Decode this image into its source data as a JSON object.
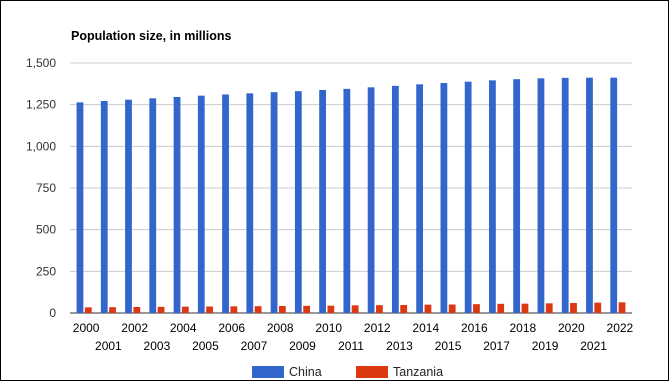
{
  "chart_data": {
    "type": "bar",
    "title": "Population size, in millions",
    "xlabel": "",
    "ylabel": "",
    "ylim": [
      0,
      1500
    ],
    "yticks": [
      0,
      250,
      500,
      750,
      1000,
      1250,
      1500
    ],
    "ytick_labels": [
      "0",
      "250",
      "500",
      "750",
      "1,000",
      "1,250",
      "1,500"
    ],
    "grid": true,
    "legend": "bottom",
    "categories": [
      "2000",
      "2001",
      "2002",
      "2003",
      "2004",
      "2005",
      "2006",
      "2007",
      "2008",
      "2009",
      "2010",
      "2011",
      "2012",
      "2013",
      "2014",
      "2015",
      "2016",
      "2017",
      "2018",
      "2019",
      "2020",
      "2021",
      "2022"
    ],
    "series": [
      {
        "name": "China",
        "color": "#3366cc",
        "values": [
          1264,
          1272,
          1280,
          1288,
          1296,
          1304,
          1311,
          1318,
          1325,
          1331,
          1338,
          1345,
          1354,
          1363,
          1372,
          1380,
          1388,
          1396,
          1403,
          1408,
          1411,
          1412,
          1412
        ]
      },
      {
        "name": "Tanzania",
        "color": "#dc3912",
        "values": [
          34,
          35,
          36,
          37,
          38,
          39,
          40,
          41,
          42,
          43,
          44,
          46,
          47,
          48,
          50,
          51,
          53,
          55,
          56,
          58,
          60,
          62,
          64
        ]
      }
    ]
  }
}
